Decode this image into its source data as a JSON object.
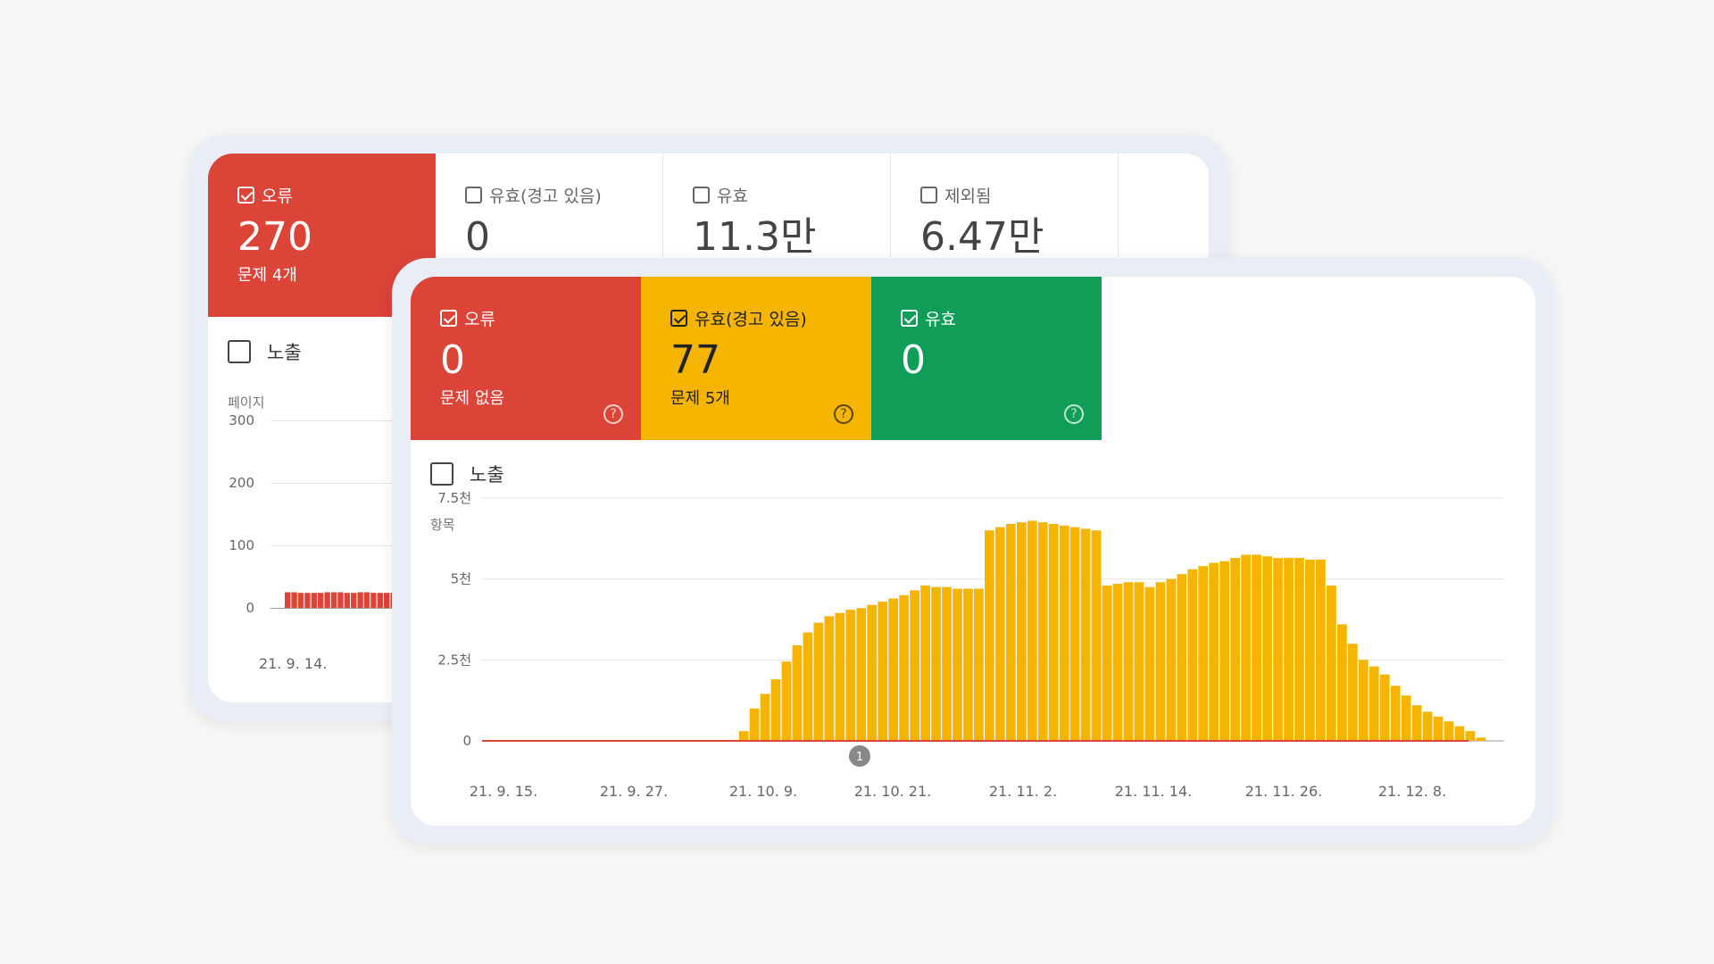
{
  "back_card": {
    "tiles": [
      {
        "label": "오류",
        "value": "270",
        "sub": "문제 4개",
        "checked": true,
        "tone": "red"
      },
      {
        "label": "유효(경고 있음)",
        "value": "0",
        "sub": "",
        "checked": false,
        "tone": "plain"
      },
      {
        "label": "유효",
        "value": "11.3만",
        "sub": "",
        "checked": false,
        "tone": "plain"
      },
      {
        "label": "제외됨",
        "value": "6.47만",
        "sub": "",
        "checked": false,
        "tone": "plain"
      }
    ],
    "toggle_label": "노출",
    "chart": {
      "ylabel": "페이지",
      "yticks": [
        "300",
        "200",
        "100",
        "0"
      ],
      "xtick": "21. 9. 14."
    }
  },
  "front_card": {
    "tiles": [
      {
        "label": "오류",
        "value": "0",
        "sub": "문제 없음",
        "checked": true,
        "tone": "red"
      },
      {
        "label": "유효(경고 있음)",
        "value": "77",
        "sub": "문제 5개",
        "checked": true,
        "tone": "yellow"
      },
      {
        "label": "유효",
        "value": "0",
        "sub": "",
        "checked": true,
        "tone": "green"
      }
    ],
    "toggle_label": "노출",
    "annotation_marker": "1",
    "help_icon_glyph": "?"
  },
  "colors": {
    "error": "#db4437",
    "warning": "#f4b400",
    "valid": "#0f9d58"
  },
  "chart_data": {
    "type": "bar",
    "title": "",
    "ylabel": "항목",
    "xlabel": "",
    "ylim": [
      0,
      7500
    ],
    "yticks": [
      "7.5천",
      "5천",
      "2.5천",
      "0"
    ],
    "x_tick_labels": [
      "21. 9. 15.",
      "21. 9. 27.",
      "21. 10. 9.",
      "21. 10. 21.",
      "21. 11. 2.",
      "21. 11. 14.",
      "21. 11. 26.",
      "21. 12. 8."
    ],
    "x_start": "2021-09-15",
    "x_end": "2021-12-23",
    "series": [
      {
        "name": "유효(경고 있음)",
        "color": "#f4b400",
        "values": [
          0,
          0,
          0,
          0,
          0,
          0,
          0,
          0,
          0,
          0,
          0,
          0,
          0,
          0,
          0,
          0,
          0,
          0,
          0,
          0,
          0,
          0,
          0,
          0,
          300,
          1000,
          1450,
          1900,
          2450,
          2950,
          3350,
          3650,
          3850,
          3950,
          4050,
          4100,
          4200,
          4300,
          4400,
          4500,
          4650,
          4800,
          4750,
          4750,
          4700,
          4700,
          4700,
          6500,
          6600,
          6700,
          6750,
          6800,
          6750,
          6700,
          6650,
          6600,
          6550,
          6500,
          4800,
          4850,
          4900,
          4900,
          4750,
          4900,
          5000,
          5150,
          5300,
          5400,
          5500,
          5550,
          5650,
          5750,
          5750,
          5700,
          5650,
          5650,
          5650,
          5600,
          5600,
          4800,
          3600,
          3000,
          2500,
          2300,
          2050,
          1700,
          1400,
          1100,
          900,
          750,
          600,
          450,
          300,
          100
        ]
      },
      {
        "name": "오류",
        "color": "#db4437",
        "values": [
          0
        ]
      }
    ]
  },
  "back_chart_data": {
    "type": "bar",
    "ylabel": "페이지",
    "ylim": [
      0,
      300
    ],
    "series": [
      {
        "name": "오류",
        "color": "#db4437",
        "values": [
          25,
          25,
          24,
          24,
          24,
          24,
          25,
          25,
          25,
          24,
          24,
          25,
          25,
          24,
          24,
          24,
          24,
          24
        ]
      }
    ]
  }
}
